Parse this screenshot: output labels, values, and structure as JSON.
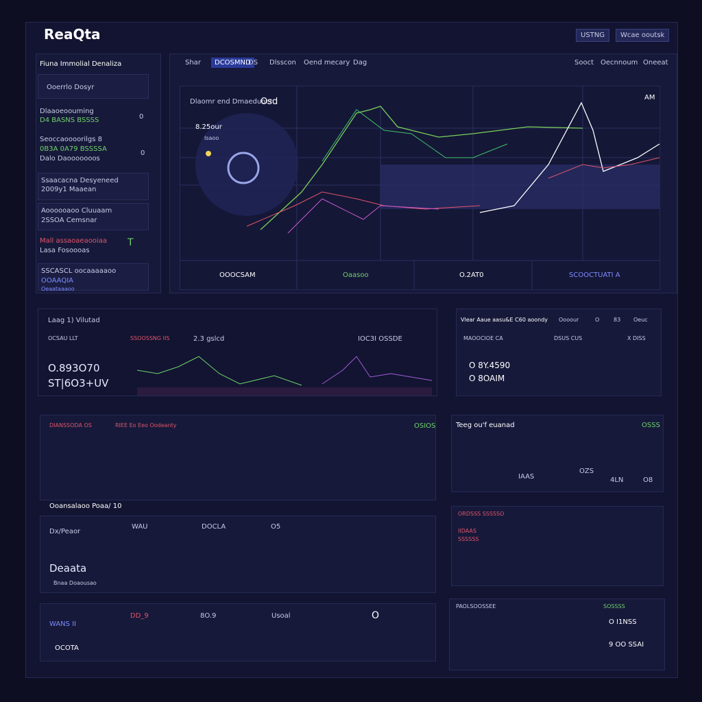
{
  "header": {
    "logo": "ReaQta",
    "buttons": [
      "USTNG",
      "Wcae ooutsk"
    ]
  },
  "sidebar": {
    "title": "Fiuna Immolial Denaliza",
    "search": "Ooerrlo Dosyr",
    "items": [
      [
        "Dlaaoeoouming",
        "D4 BASNS BSSSS",
        "0"
      ],
      [
        "Seoccaoooorilgs 8",
        "0B3A 0A79 BSSSSA",
        "0"
      ],
      [
        "Dalo Daooooooos",
        "",
        " "
      ],
      [
        "Ssaacacna Desyeneed",
        "2009y1 Maaean",
        ""
      ],
      [
        "Aoooooaoo Cluuaam",
        "2SSOA Cemsnar",
        ""
      ],
      [
        "Mall assaoaeaooiaa",
        "Lasa Fosoooas",
        "T"
      ],
      [
        "SSCASCL oocaaaaaoo",
        "OOAAQIA",
        "Oeaataaaoo"
      ]
    ]
  },
  "tabs": {
    "left": [
      "Shar",
      "DCOSMND",
      "DS",
      "Dlsscon",
      "Oend mecary",
      "Dag"
    ],
    "right": [
      "Sooct",
      "Oecnnoum",
      "Oneeat"
    ]
  },
  "main": {
    "title": "Dlaomr end Dmaeduoer",
    "badge": "Osd",
    "value": "8.25our",
    "sub": "Isaoo",
    "corner": "AM",
    "footer": [
      "OOOCSAM",
      "Oaasoo",
      "O.2AT0",
      "SCOOCTUATI A"
    ]
  },
  "panel2": {
    "title": "Laag 1) Vilutad",
    "col1": "OCSAU LLT",
    "col2": "SSOOSSNG IIS",
    "col3": "2.3 gslcd",
    "col4": "IOC3I OSSDE",
    "v1": "O.893O70",
    "v2": "ST|6O3+UV"
  },
  "panel3": {
    "title": "Vlear Aaue aasu&E C60 aoondy",
    "tabs": [
      "Oooour",
      "O",
      "83",
      "Oeuc"
    ],
    "h1": "MAOOCIOE CA",
    "h2": "DSUS CUS",
    "h3": "X DISS",
    "v1": "O 8Y.4590",
    "v2": "O 8OAIM"
  },
  "panel4": {
    "title": "DIANSSODA OS",
    "subtitle": "RIEE Eo Eeo Oodeanty",
    "corner": "OSIOS"
  },
  "panel5": {
    "title": "Teeg ou'f euanad",
    "corner": "OSSS",
    "labels": [
      "IAAS",
      "OZS",
      "4LN",
      "O8"
    ]
  },
  "table1": {
    "title": "Ooansalaoo Poaa/ 10",
    "headers": [
      "WAU",
      "DOCLA",
      "O5"
    ],
    "row": "Dx/Peaor",
    "name": "Deaata",
    "footer": "Bnaa Doaousao"
  },
  "table2": {
    "label": "WANS II",
    "headers": [
      "DD_9",
      "8O.9",
      "Usoal",
      "O"
    ],
    "name": "OCOTA"
  },
  "panel6": {
    "title": "ORDSSS SSSSSO",
    "labels": [
      "IIDAAS",
      "SSSSSS"
    ]
  },
  "panel7": {
    "title": "PAOLSOOSSEE",
    "side": "SOSSSS",
    "v1": "O I1NSS",
    "v2": "9 OO SSAI"
  }
}
